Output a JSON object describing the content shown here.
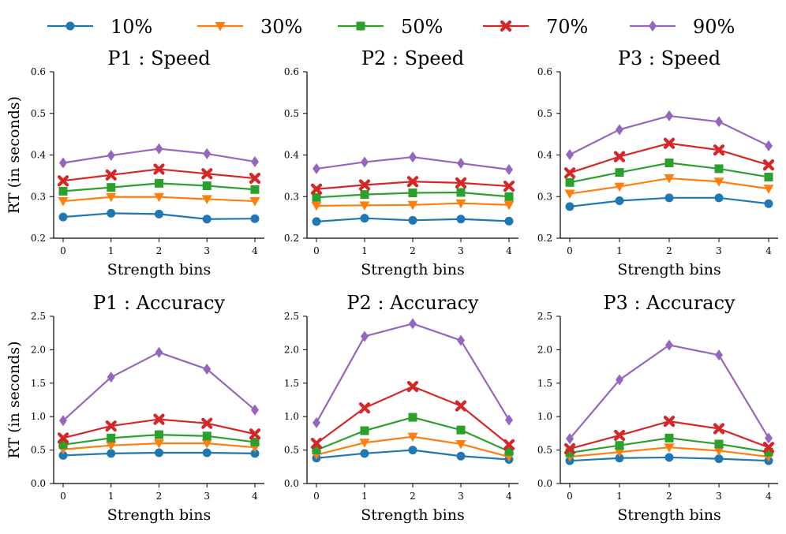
{
  "legend": {
    "items": [
      {
        "label": "10%",
        "color": "#1f77b4",
        "marker": "circle"
      },
      {
        "label": "30%",
        "color": "#ff7f0e",
        "marker": "triangle-down"
      },
      {
        "label": "50%",
        "color": "#2ca02c",
        "marker": "square"
      },
      {
        "label": "70%",
        "color": "#d62728",
        "marker": "x"
      },
      {
        "label": "90%",
        "color": "#9467bd",
        "marker": "diamond"
      }
    ]
  },
  "chart_data": [
    {
      "type": "line",
      "title": "P1 : Speed",
      "xlabel": "Strength bins",
      "ylabel": "RT (in seconds)",
      "x": [
        0,
        1,
        2,
        3,
        4
      ],
      "ylim": [
        0.2,
        0.6
      ],
      "yticks": [
        "0.2",
        "0.3",
        "0.4",
        "0.5",
        "0.6"
      ],
      "xticks": [
        "0",
        "1",
        "2",
        "3",
        "4"
      ],
      "series": [
        {
          "name": "10%",
          "values": [
            0.251,
            0.26,
            0.258,
            0.246,
            0.247
          ]
        },
        {
          "name": "30%",
          "values": [
            0.289,
            0.299,
            0.299,
            0.294,
            0.289
          ]
        },
        {
          "name": "50%",
          "values": [
            0.313,
            0.322,
            0.332,
            0.326,
            0.317
          ]
        },
        {
          "name": "70%",
          "values": [
            0.338,
            0.352,
            0.366,
            0.355,
            0.344
          ]
        },
        {
          "name": "90%",
          "values": [
            0.381,
            0.399,
            0.415,
            0.403,
            0.384
          ]
        }
      ]
    },
    {
      "type": "line",
      "title": "P2 : Speed",
      "xlabel": "Strength bins",
      "ylabel": "",
      "x": [
        0,
        1,
        2,
        3,
        4
      ],
      "ylim": [
        0.2,
        0.6
      ],
      "yticks": [
        "0.2",
        "0.3",
        "0.4",
        "0.5",
        "0.6"
      ],
      "xticks": [
        "0",
        "1",
        "2",
        "3",
        "4"
      ],
      "series": [
        {
          "name": "10%",
          "values": [
            0.24,
            0.248,
            0.243,
            0.246,
            0.241
          ]
        },
        {
          "name": "30%",
          "values": [
            0.278,
            0.279,
            0.28,
            0.284,
            0.28
          ]
        },
        {
          "name": "50%",
          "values": [
            0.298,
            0.305,
            0.309,
            0.31,
            0.3
          ]
        },
        {
          "name": "70%",
          "values": [
            0.318,
            0.328,
            0.336,
            0.333,
            0.325
          ]
        },
        {
          "name": "90%",
          "values": [
            0.367,
            0.383,
            0.395,
            0.38,
            0.365
          ]
        }
      ]
    },
    {
      "type": "line",
      "title": "P3 : Speed",
      "xlabel": "Strength bins",
      "ylabel": "",
      "x": [
        0,
        1,
        2,
        3,
        4
      ],
      "ylim": [
        0.2,
        0.6
      ],
      "yticks": [
        "0.2",
        "0.3",
        "0.4",
        "0.5",
        "0.6"
      ],
      "xticks": [
        "0",
        "1",
        "2",
        "3",
        "4"
      ],
      "series": [
        {
          "name": "10%",
          "values": [
            0.276,
            0.29,
            0.297,
            0.297,
            0.283
          ]
        },
        {
          "name": "30%",
          "values": [
            0.307,
            0.324,
            0.344,
            0.336,
            0.319
          ]
        },
        {
          "name": "50%",
          "values": [
            0.334,
            0.358,
            0.381,
            0.367,
            0.347
          ]
        },
        {
          "name": "70%",
          "values": [
            0.357,
            0.396,
            0.428,
            0.412,
            0.376
          ]
        },
        {
          "name": "90%",
          "values": [
            0.401,
            0.461,
            0.494,
            0.48,
            0.422
          ]
        }
      ]
    },
    {
      "type": "line",
      "title": "P1 : Accuracy",
      "xlabel": "Strength bins",
      "ylabel": "RT (in seconds)",
      "x": [
        0,
        1,
        2,
        3,
        4
      ],
      "ylim": [
        0.0,
        2.5
      ],
      "yticks": [
        "0.0",
        "0.5",
        "1.0",
        "1.5",
        "2.0",
        "2.5"
      ],
      "xticks": [
        "0",
        "1",
        "2",
        "3",
        "4"
      ],
      "series": [
        {
          "name": "10%",
          "values": [
            0.42,
            0.45,
            0.46,
            0.46,
            0.45
          ]
        },
        {
          "name": "30%",
          "values": [
            0.51,
            0.57,
            0.6,
            0.6,
            0.54
          ]
        },
        {
          "name": "50%",
          "values": [
            0.58,
            0.68,
            0.73,
            0.71,
            0.62
          ]
        },
        {
          "name": "70%",
          "values": [
            0.68,
            0.86,
            0.96,
            0.9,
            0.74
          ]
        },
        {
          "name": "90%",
          "values": [
            0.94,
            1.59,
            1.96,
            1.71,
            1.1
          ]
        }
      ]
    },
    {
      "type": "line",
      "title": "P2 : Accuracy",
      "xlabel": "Strength bins",
      "ylabel": "",
      "x": [
        0,
        1,
        2,
        3,
        4
      ],
      "ylim": [
        0.0,
        2.5
      ],
      "yticks": [
        "0.0",
        "0.5",
        "1.0",
        "1.5",
        "2.0",
        "2.5"
      ],
      "xticks": [
        "0",
        "1",
        "2",
        "3",
        "4"
      ],
      "series": [
        {
          "name": "10%",
          "values": [
            0.38,
            0.45,
            0.5,
            0.41,
            0.36
          ]
        },
        {
          "name": "30%",
          "values": [
            0.43,
            0.61,
            0.7,
            0.59,
            0.4
          ]
        },
        {
          "name": "50%",
          "values": [
            0.5,
            0.79,
            0.99,
            0.8,
            0.48
          ]
        },
        {
          "name": "70%",
          "values": [
            0.6,
            1.13,
            1.45,
            1.16,
            0.58
          ]
        },
        {
          "name": "90%",
          "values": [
            0.91,
            2.2,
            2.39,
            2.14,
            0.95
          ]
        }
      ]
    },
    {
      "type": "line",
      "title": "P3 : Accuracy",
      "xlabel": "Strength bins",
      "ylabel": "",
      "x": [
        0,
        1,
        2,
        3,
        4
      ],
      "ylim": [
        0.0,
        2.5
      ],
      "yticks": [
        "0.0",
        "0.5",
        "1.0",
        "1.5",
        "2.0",
        "2.5"
      ],
      "xticks": [
        "0",
        "1",
        "2",
        "3",
        "4"
      ],
      "series": [
        {
          "name": "10%",
          "values": [
            0.34,
            0.38,
            0.39,
            0.37,
            0.34
          ]
        },
        {
          "name": "30%",
          "values": [
            0.4,
            0.47,
            0.54,
            0.49,
            0.4
          ]
        },
        {
          "name": "50%",
          "values": [
            0.46,
            0.57,
            0.68,
            0.59,
            0.47
          ]
        },
        {
          "name": "70%",
          "values": [
            0.52,
            0.72,
            0.93,
            0.82,
            0.54
          ]
        },
        {
          "name": "90%",
          "values": [
            0.67,
            1.55,
            2.07,
            1.92,
            0.68
          ]
        }
      ]
    }
  ]
}
